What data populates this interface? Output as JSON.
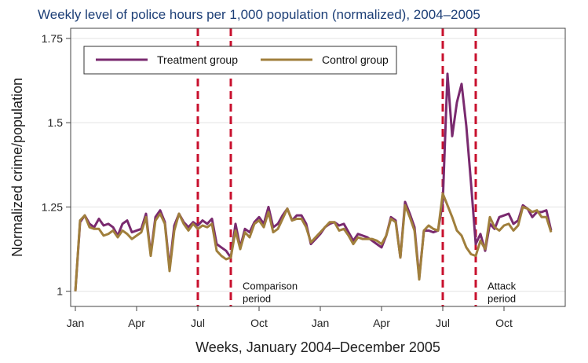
{
  "chart_data": {
    "type": "line",
    "title": "Weekly level of police hours per 1,000 population (normalized), 2004–2005",
    "xlabel": "Weeks, January 2004–December 2005",
    "ylabel": "Normalized crime/population",
    "ylim": [
      0.955,
      1.78
    ],
    "yticks": [
      1,
      1.25,
      1.5,
      1.75
    ],
    "ytick_labels": [
      "1",
      "1.25",
      "1.5",
      "1.75"
    ],
    "xlim": [
      0,
      105
    ],
    "xticks": [
      {
        "week": 1,
        "label": "Jan"
      },
      {
        "week": 14,
        "label": "Apr"
      },
      {
        "week": 27,
        "label": "Jul"
      },
      {
        "week": 40,
        "label": "Oct"
      },
      {
        "week": 53,
        "label": "Jan"
      },
      {
        "week": 66,
        "label": "Apr"
      },
      {
        "week": 79,
        "label": "Jul"
      },
      {
        "week": 92,
        "label": "Oct"
      }
    ],
    "grid": true,
    "legend_position": "top-left",
    "vlines": [
      27,
      34,
      79,
      86
    ],
    "annotations": [
      {
        "week": 36.5,
        "y": 1.005,
        "text": [
          "Comparison",
          "period"
        ]
      },
      {
        "week": 88.5,
        "y": 1.005,
        "text": [
          "Attack",
          "period"
        ]
      }
    ],
    "series": [
      {
        "name": "Treatment group",
        "color": "#7a2a6f",
        "values": [
          1.0,
          1.205,
          1.225,
          1.2,
          1.19,
          1.215,
          1.195,
          1.2,
          1.19,
          1.165,
          1.2,
          1.21,
          1.175,
          1.18,
          1.185,
          1.23,
          1.11,
          1.22,
          1.24,
          1.205,
          1.07,
          1.195,
          1.23,
          1.205,
          1.19,
          1.205,
          1.195,
          1.21,
          1.2,
          1.215,
          1.14,
          1.13,
          1.12,
          1.1,
          1.2,
          1.13,
          1.185,
          1.175,
          1.205,
          1.22,
          1.2,
          1.25,
          1.19,
          1.2,
          1.225,
          1.245,
          1.21,
          1.225,
          1.225,
          1.2,
          1.14,
          1.155,
          1.17,
          1.19,
          1.2,
          1.205,
          1.195,
          1.2,
          1.175,
          1.15,
          1.17,
          1.165,
          1.16,
          1.15,
          1.14,
          1.13,
          1.165,
          1.22,
          1.21,
          1.1,
          1.265,
          1.23,
          1.19,
          1.04,
          1.18,
          1.18,
          1.175,
          1.18,
          1.265,
          1.645,
          1.46,
          1.56,
          1.615,
          1.49,
          1.32,
          1.14,
          1.17,
          1.12,
          1.2,
          1.185,
          1.22,
          1.225,
          1.23,
          1.2,
          1.21,
          1.255,
          1.245,
          1.22,
          1.235,
          1.235,
          1.24,
          1.18
        ]
      },
      {
        "name": "Control group",
        "color": "#a07f3c",
        "values": [
          1.0,
          1.21,
          1.225,
          1.19,
          1.185,
          1.185,
          1.165,
          1.17,
          1.18,
          1.16,
          1.18,
          1.17,
          1.155,
          1.165,
          1.175,
          1.22,
          1.105,
          1.21,
          1.23,
          1.2,
          1.06,
          1.18,
          1.23,
          1.2,
          1.18,
          1.2,
          1.185,
          1.195,
          1.19,
          1.2,
          1.12,
          1.105,
          1.095,
          1.1,
          1.18,
          1.125,
          1.175,
          1.16,
          1.2,
          1.21,
          1.19,
          1.235,
          1.175,
          1.185,
          1.215,
          1.245,
          1.21,
          1.215,
          1.215,
          1.19,
          1.145,
          1.16,
          1.175,
          1.19,
          1.205,
          1.205,
          1.18,
          1.185,
          1.165,
          1.14,
          1.16,
          1.155,
          1.155,
          1.155,
          1.15,
          1.14,
          1.165,
          1.215,
          1.205,
          1.1,
          1.255,
          1.22,
          1.18,
          1.035,
          1.18,
          1.195,
          1.185,
          1.18,
          1.29,
          1.255,
          1.22,
          1.18,
          1.165,
          1.13,
          1.11,
          1.105,
          1.15,
          1.125,
          1.22,
          1.19,
          1.18,
          1.195,
          1.2,
          1.18,
          1.195,
          1.25,
          1.245,
          1.235,
          1.24,
          1.22,
          1.22,
          1.175
        ]
      }
    ]
  }
}
